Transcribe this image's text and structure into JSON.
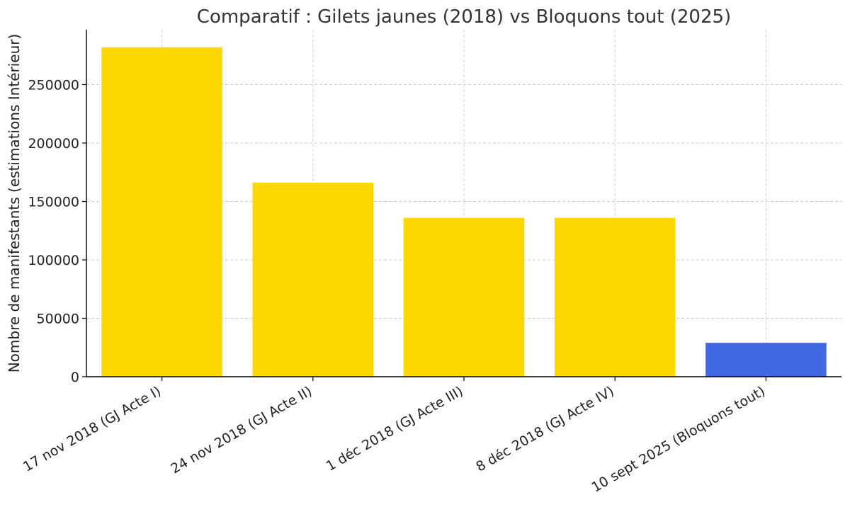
{
  "chart_data": {
    "type": "bar",
    "title": "Comparatif : Gilets jaunes (2018) vs Bloquons tout (2025)",
    "xlabel": "",
    "ylabel": "Nombre de manifestants (estimations Intérieur)",
    "categories": [
      "17 nov 2018 (GJ Acte I)",
      "24 nov 2018 (GJ Acte II)",
      "1 déc 2018 (GJ Acte III)",
      "8 déc 2018 (GJ Acte IV)",
      "10 sept 2025 (Bloquons tout)"
    ],
    "values": [
      282000,
      166000,
      136000,
      136000,
      29000
    ],
    "bar_colors": [
      "#FFD700",
      "#FFD700",
      "#FFD700",
      "#FFD700",
      "#4169E1"
    ],
    "ylim": [
      0,
      297000
    ],
    "yticks": [
      0,
      50000,
      100000,
      150000,
      200000,
      250000
    ],
    "grid": true,
    "grid_color": "#cccccc"
  }
}
